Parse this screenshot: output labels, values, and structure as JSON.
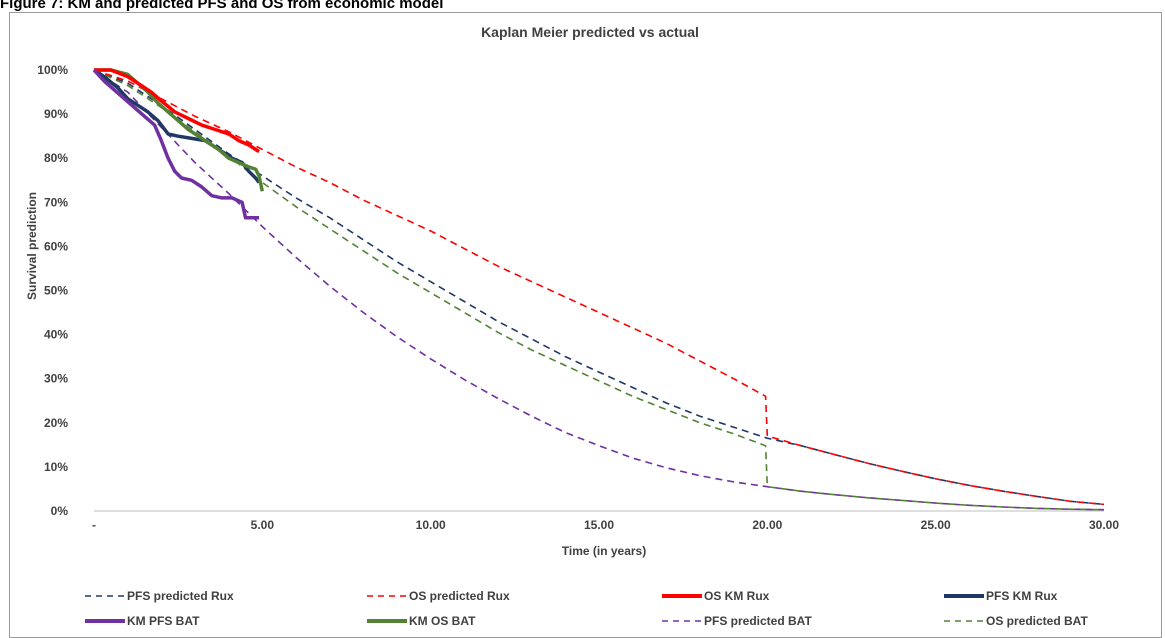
{
  "caption": "Figure 7: KM and predicted PFS and OS from economic model",
  "chart_data": {
    "type": "line",
    "title": "Kaplan Meier predicted vs actual",
    "xlabel": "Time (in years)",
    "ylabel": "Survival prediction",
    "xlim": [
      0,
      30
    ],
    "ylim": [
      0,
      1
    ],
    "x_ticks": [
      {
        "value": 0,
        "label": "-"
      },
      {
        "value": 5,
        "label": "5.00"
      },
      {
        "value": 10,
        "label": "10.00"
      },
      {
        "value": 15,
        "label": "15.00"
      },
      {
        "value": 20,
        "label": "20.00"
      },
      {
        "value": 25,
        "label": "25.00"
      },
      {
        "value": 30,
        "label": "30.00"
      }
    ],
    "y_ticks": [
      {
        "value": 0,
        "label": "0%"
      },
      {
        "value": 0.1,
        "label": "10%"
      },
      {
        "value": 0.2,
        "label": "20%"
      },
      {
        "value": 0.3,
        "label": "30%"
      },
      {
        "value": 0.4,
        "label": "40%"
      },
      {
        "value": 0.5,
        "label": "50%"
      },
      {
        "value": 0.6,
        "label": "60%"
      },
      {
        "value": 0.7,
        "label": "70%"
      },
      {
        "value": 0.8,
        "label": "80%"
      },
      {
        "value": 0.9,
        "label": "90%"
      },
      {
        "value": 1.0,
        "label": "100%"
      }
    ],
    "grid": false,
    "legend_position": "bottom",
    "series": [
      {
        "name": "PFS predicted Rux",
        "color": "#1f3864",
        "style": "dashed",
        "x": [
          0,
          1,
          2,
          3,
          4,
          5,
          6,
          7,
          8,
          9,
          10,
          11,
          12,
          13,
          14,
          15,
          16,
          17,
          18,
          19,
          20,
          21,
          22,
          23,
          24,
          25,
          26,
          27,
          28,
          29,
          30
        ],
        "y": [
          1.0,
          0.97,
          0.92,
          0.865,
          0.81,
          0.76,
          0.71,
          0.665,
          0.615,
          0.565,
          0.52,
          0.475,
          0.43,
          0.39,
          0.35,
          0.315,
          0.28,
          0.245,
          0.215,
          0.19,
          0.165,
          0.148,
          0.128,
          0.108,
          0.09,
          0.073,
          0.058,
          0.045,
          0.033,
          0.022,
          0.015
        ]
      },
      {
        "name": "OS predicted Rux",
        "color": "#ff0000",
        "style": "dashed",
        "x": [
          0,
          1,
          2,
          3,
          4,
          5,
          6,
          7,
          8,
          9,
          10,
          11,
          12,
          13,
          14,
          15,
          16,
          17,
          18,
          19,
          19.95,
          20.0,
          21,
          22,
          23,
          24,
          25,
          26,
          27,
          28,
          29,
          30
        ],
        "y": [
          1.0,
          0.975,
          0.935,
          0.895,
          0.86,
          0.82,
          0.78,
          0.745,
          0.705,
          0.67,
          0.635,
          0.595,
          0.555,
          0.52,
          0.485,
          0.45,
          0.415,
          0.38,
          0.34,
          0.3,
          0.26,
          0.17,
          0.148,
          0.128,
          0.108,
          0.09,
          0.073,
          0.058,
          0.045,
          0.033,
          0.022,
          0.015
        ]
      },
      {
        "name": "OS KM Rux",
        "color": "#ff0000",
        "style": "solid",
        "x": [
          0,
          0.5,
          1.0,
          1.3,
          1.7,
          2.0,
          2.4,
          2.8,
          3.2,
          3.6,
          4.0,
          4.3,
          4.6,
          4.8,
          4.9
        ],
        "y": [
          1.0,
          1.0,
          0.985,
          0.97,
          0.95,
          0.93,
          0.905,
          0.89,
          0.875,
          0.865,
          0.855,
          0.84,
          0.83,
          0.82,
          0.815
        ]
      },
      {
        "name": "PFS KM Rux",
        "color": "#1f3864",
        "style": "solid",
        "x": [
          0,
          0.3,
          0.7,
          1.0,
          1.3,
          1.6,
          1.9,
          2.2,
          2.5,
          2.9,
          3.3,
          3.7,
          4.1,
          4.4,
          4.6,
          4.8,
          4.9
        ],
        "y": [
          1.0,
          0.985,
          0.96,
          0.935,
          0.92,
          0.905,
          0.885,
          0.855,
          0.85,
          0.845,
          0.84,
          0.82,
          0.8,
          0.79,
          0.77,
          0.755,
          0.745
        ]
      },
      {
        "name": "KM PFS BAT",
        "color": "#7030a0",
        "style": "solid",
        "x": [
          0,
          0.3,
          0.6,
          0.9,
          1.2,
          1.5,
          1.8,
          2.0,
          2.2,
          2.4,
          2.6,
          2.9,
          3.2,
          3.5,
          3.8,
          4.1,
          4.4,
          4.5,
          4.9
        ],
        "y": [
          1.0,
          0.975,
          0.955,
          0.935,
          0.915,
          0.895,
          0.875,
          0.84,
          0.8,
          0.77,
          0.755,
          0.75,
          0.735,
          0.715,
          0.71,
          0.71,
          0.7,
          0.665,
          0.665
        ]
      },
      {
        "name": "KM OS BAT",
        "color": "#548235",
        "style": "solid",
        "x": [
          0,
          0.5,
          1.0,
          1.3,
          1.6,
          1.9,
          2.2,
          2.5,
          2.8,
          3.1,
          3.4,
          3.7,
          4.0,
          4.3,
          4.6,
          4.8,
          4.9,
          5.0
        ],
        "y": [
          1.0,
          1.0,
          0.99,
          0.97,
          0.95,
          0.925,
          0.905,
          0.885,
          0.865,
          0.85,
          0.835,
          0.82,
          0.8,
          0.79,
          0.78,
          0.775,
          0.76,
          0.725
        ]
      },
      {
        "name": "PFS predicted BAT",
        "color": "#7030a0",
        "style": "dashed",
        "x": [
          0,
          1,
          2,
          3,
          4,
          5,
          6,
          7,
          8,
          9,
          10,
          11,
          12,
          13,
          14,
          15,
          16,
          17,
          18,
          19,
          20,
          21,
          22,
          23,
          24,
          25,
          26,
          27,
          28,
          29,
          30
        ],
        "y": [
          1.0,
          0.95,
          0.87,
          0.79,
          0.72,
          0.645,
          0.575,
          0.51,
          0.45,
          0.395,
          0.345,
          0.298,
          0.255,
          0.215,
          0.178,
          0.148,
          0.12,
          0.098,
          0.08,
          0.066,
          0.055,
          0.045,
          0.037,
          0.03,
          0.024,
          0.018,
          0.013,
          0.009,
          0.006,
          0.004,
          0.003
        ]
      },
      {
        "name": "OS predicted BAT",
        "color": "#548235",
        "style": "dashed",
        "x": [
          0,
          1,
          2,
          3,
          4,
          5,
          6,
          7,
          8,
          9,
          10,
          11,
          12,
          13,
          14,
          15,
          16,
          17,
          18,
          19,
          19.95,
          20.0,
          21,
          22,
          23,
          24,
          25,
          26,
          27,
          28,
          29,
          30
        ],
        "y": [
          1.0,
          0.965,
          0.915,
          0.86,
          0.805,
          0.745,
          0.69,
          0.64,
          0.59,
          0.54,
          0.495,
          0.45,
          0.405,
          0.365,
          0.33,
          0.295,
          0.26,
          0.23,
          0.2,
          0.175,
          0.148,
          0.055,
          0.045,
          0.037,
          0.03,
          0.024,
          0.018,
          0.013,
          0.009,
          0.006,
          0.004,
          0.003
        ]
      }
    ]
  }
}
